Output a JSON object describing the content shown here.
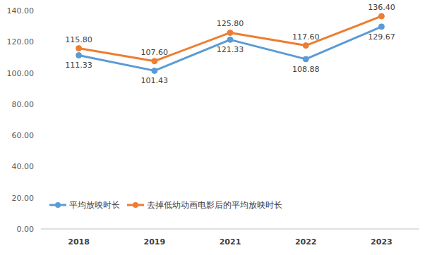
{
  "chart_data": {
    "type": "line",
    "categories": [
      "2018",
      "2019",
      "2021",
      "2022",
      "2023"
    ],
    "series": [
      {
        "name": "平均放映时长",
        "color": "#5b9bd5",
        "marker": "circle",
        "values": [
          111.33,
          101.43,
          121.33,
          108.88,
          129.67
        ],
        "value_labels": [
          "111.33",
          "101.43",
          "121.33",
          "108.88",
          "129.67"
        ]
      },
      {
        "name": "去掉低幼动画电影后的平均放映时长",
        "color": "#ed7d31",
        "marker": "circle",
        "values": [
          115.8,
          107.6,
          125.8,
          117.6,
          136.4
        ],
        "value_labels": [
          "115.80",
          "107.60",
          "125.80",
          "117.60",
          "136.40"
        ]
      }
    ],
    "ylim": [
      0,
      140
    ],
    "yticks": [
      {
        "value": 0,
        "label": "0.00"
      },
      {
        "value": 20,
        "label": "20.00"
      },
      {
        "value": 40,
        "label": "40.00"
      },
      {
        "value": 60,
        "label": "60.00"
      },
      {
        "value": 80,
        "label": "80.00"
      },
      {
        "value": 100,
        "label": "100.00"
      },
      {
        "value": 120,
        "label": "120.00"
      },
      {
        "value": 140,
        "label": "140.00"
      }
    ],
    "grid": false,
    "data_labels": true,
    "legend": "bottom-left"
  }
}
